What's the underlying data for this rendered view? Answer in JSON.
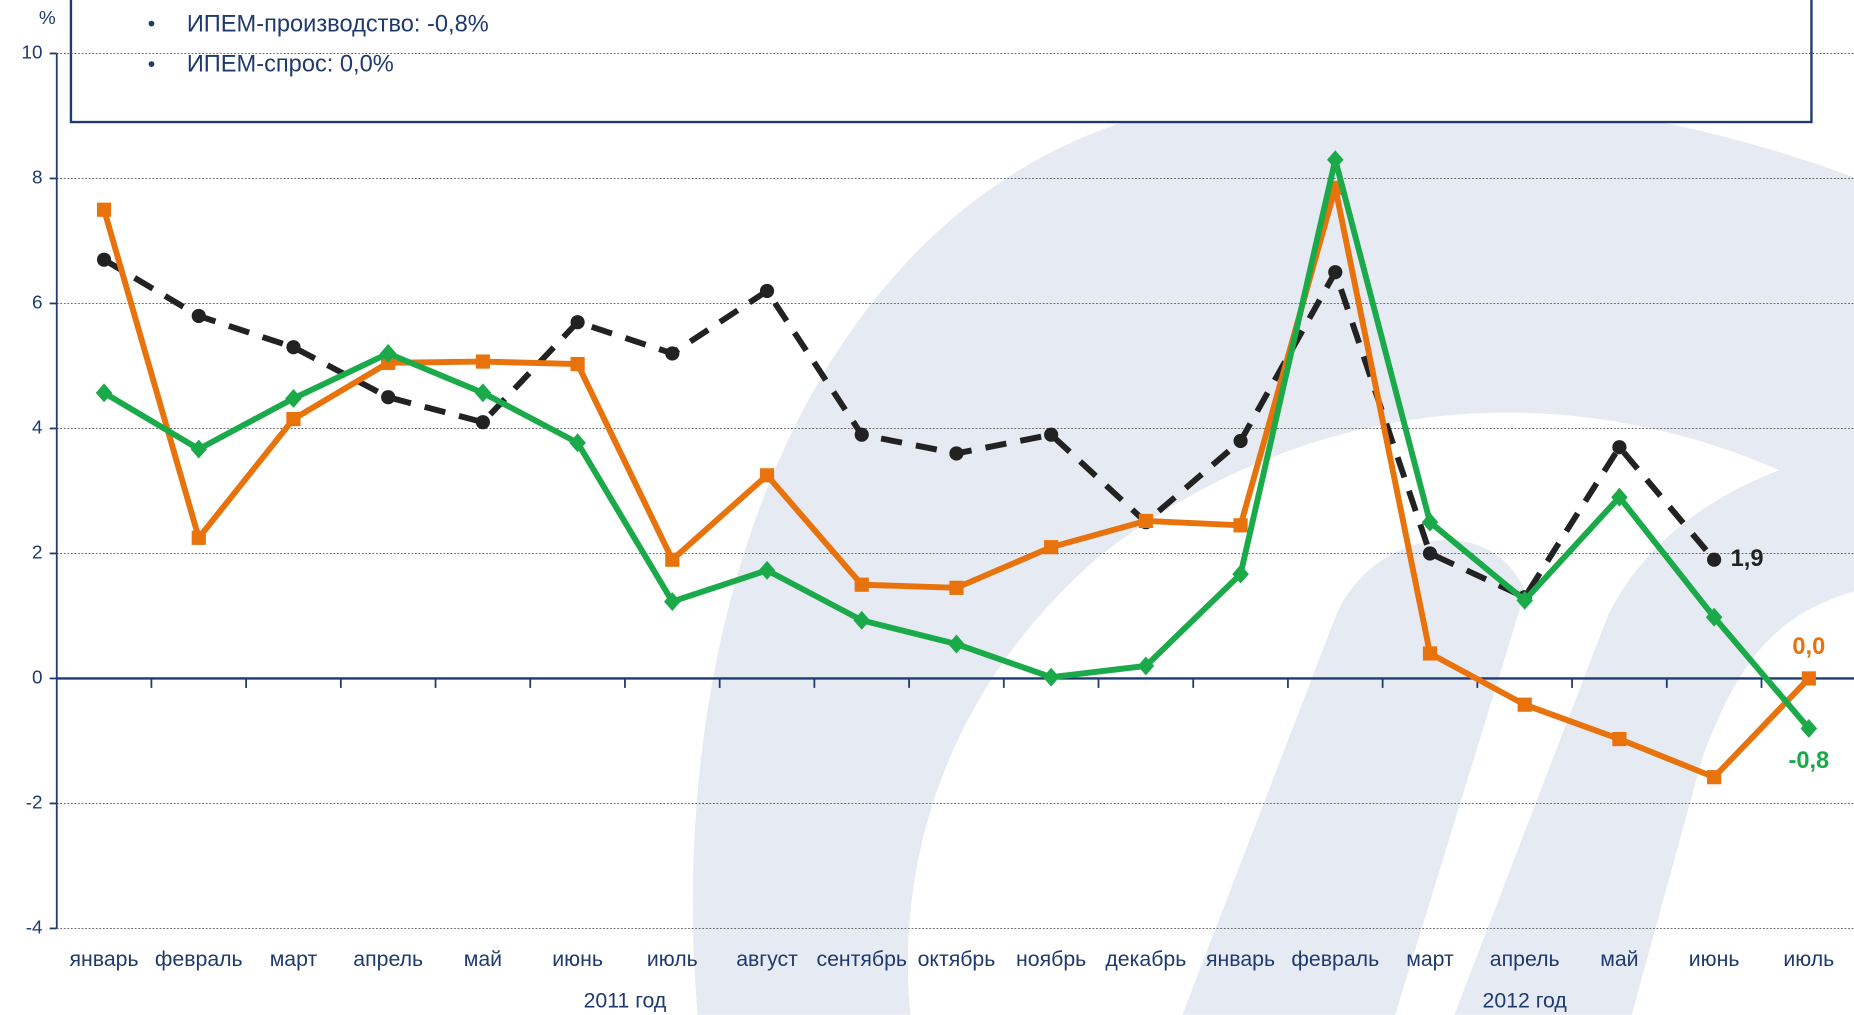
{
  "chart_data": {
    "type": "line",
    "ylabel": "%",
    "annotations": [
      "ИПЕМ-производство: -0,8%",
      "ИПЕМ-спрос: 0,0%"
    ],
    "categories": [
      "январь",
      "февраль",
      "март",
      "апрель",
      "май",
      "июнь",
      "июль",
      "август",
      "сентябрь",
      "октябрь",
      "ноябрь",
      "декабрь",
      "январь",
      "февраль",
      "март",
      "апрель",
      "май",
      "июнь",
      "июль"
    ],
    "groups": [
      "2011 год",
      "2012 год"
    ],
    "series": [
      {
        "color": "#222222",
        "style": "dashed",
        "marker": "circle",
        "values": [
          6.7,
          5.8,
          5.3,
          4.5,
          4.1,
          5.7,
          5.2,
          6.2,
          3.9,
          3.6,
          3.9,
          2.5,
          3.8,
          6.5,
          2.0,
          1.3,
          3.7,
          1.9,
          null
        ],
        "value_labels": [
          null,
          null,
          null,
          null,
          null,
          null,
          null,
          null,
          null,
          null,
          null,
          null,
          null,
          null,
          null,
          null,
          null,
          "1,9",
          null
        ]
      },
      {
        "color": "#e8720c",
        "style": "solid",
        "marker": "square",
        "values": [
          7.5,
          2.25,
          4.15,
          5.05,
          5.07,
          5.03,
          1.9,
          3.25,
          1.5,
          1.45,
          2.1,
          2.52,
          2.45,
          7.85,
          0.4,
          -0.42,
          -0.97,
          -1.58,
          0.0
        ],
        "value_labels": [
          null,
          null,
          null,
          null,
          null,
          null,
          null,
          null,
          null,
          null,
          null,
          null,
          null,
          null,
          null,
          null,
          null,
          null,
          "0,0"
        ]
      },
      {
        "color": "#1aaa4a",
        "style": "solid",
        "marker": "diamond",
        "values": [
          4.57,
          3.67,
          4.48,
          5.2,
          4.57,
          3.77,
          1.23,
          1.73,
          0.93,
          0.55,
          0.02,
          0.2,
          1.67,
          8.3,
          2.5,
          1.25,
          2.9,
          0.98,
          -0.8
        ],
        "value_labels": [
          null,
          null,
          null,
          null,
          null,
          null,
          null,
          null,
          null,
          null,
          null,
          null,
          null,
          null,
          null,
          null,
          null,
          null,
          "-0,8"
        ]
      }
    ],
    "ylim": [
      -4,
      10
    ],
    "yticks": [
      -4,
      -2,
      0,
      2,
      4,
      6,
      8,
      10
    ],
    "grid": true
  }
}
